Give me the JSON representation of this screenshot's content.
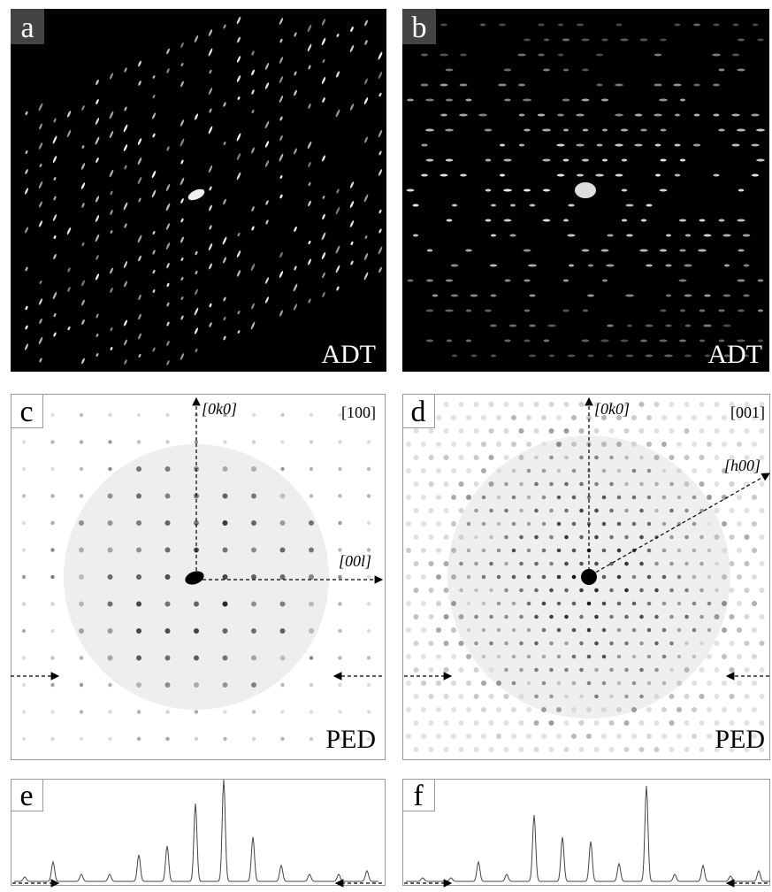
{
  "panels": [
    {
      "label": "a",
      "caption": "ADT"
    },
    {
      "label": "b",
      "caption": "ADT"
    },
    {
      "label": "c",
      "caption": "PED",
      "zone": "[100]",
      "axes": [
        "[0k0]",
        "[00l]"
      ]
    },
    {
      "label": "d",
      "caption": "PED",
      "zone": "[001]",
      "axes": [
        "[0k0]",
        "[h00]"
      ]
    },
    {
      "label": "e"
    },
    {
      "label": "f"
    }
  ]
}
